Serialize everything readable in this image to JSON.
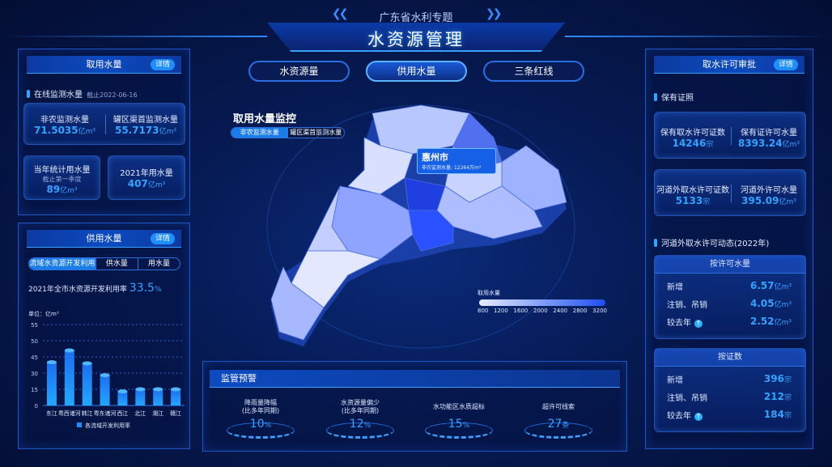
{
  "header": {
    "subtitle": "广东省水利专题",
    "title": "水资源管理"
  },
  "nav_tabs": [
    {
      "label": "水资源量",
      "active": false
    },
    {
      "label": "供用水量",
      "active": true
    },
    {
      "label": "三条红线",
      "active": false
    }
  ],
  "left_top": {
    "title": "取用水量",
    "detail": "详情",
    "section": "在线监测水量",
    "as_of": "截止2022-06-16",
    "items": [
      {
        "label": "非农监测水量",
        "value": "71.5035",
        "unit": "亿m³"
      },
      {
        "label": "罐区渠首监测水量",
        "value": "55.7173",
        "unit": "亿m³"
      }
    ],
    "annual": {
      "label": "当年统计用水量",
      "note": "截止第一季度",
      "value": "89",
      "unit": "亿m³"
    },
    "y2021": {
      "label": "2021年用水量",
      "value": "407",
      "unit": "亿m³"
    }
  },
  "left_bottom": {
    "title": "供用水量",
    "detail": "详情",
    "tabs": [
      "流域水资源开发利用",
      "供水量",
      "用水量"
    ],
    "active_tab": 0,
    "rate_label": "2021年全市水资源开发利用率",
    "rate_value": "33.5",
    "rate_unit": "%"
  },
  "chart_data": {
    "type": "bar",
    "ylabel": "单位：亿m³",
    "yticks": [
      0,
      15,
      30,
      45,
      50,
      55
    ],
    "categories": [
      "东江",
      "粤西诸河",
      "韩江",
      "粤东诸河",
      "西江",
      "北江",
      "湘江",
      "赣江"
    ],
    "series": [
      {
        "name": "各流域开发利用率",
        "values": [
          40,
          47,
          39,
          28,
          13,
          15,
          15,
          15
        ]
      }
    ],
    "legend": "bottom",
    "grid": true,
    "color": "#1e8fff"
  },
  "map": {
    "title": "取用水量监控",
    "toggle": [
      "非农监测水量",
      "罐区渠首监测水量"
    ],
    "active_toggle": 0,
    "tooltip": {
      "city": "惠州市",
      "label": "非农监测水量:",
      "value": "12264",
      "unit": "万m³"
    },
    "legend": {
      "title": "取用水量",
      "ticks": [
        "800",
        "1200",
        "1600",
        "2000",
        "2400",
        "2800",
        "3200"
      ],
      "color_low": "#e6ecff",
      "color_high": "#1e4ff0"
    }
  },
  "warning": {
    "title": "监管预警",
    "items": [
      {
        "label": "降雨量降幅",
        "sub": "(比多年同期)",
        "value": "10",
        "unit": "%"
      },
      {
        "label": "水资源量偏少",
        "sub": "(比多年同期)",
        "value": "12",
        "unit": "%"
      },
      {
        "label": "水功能区水质超标",
        "sub": "",
        "value": "15",
        "unit": "%"
      },
      {
        "label": "超许可线索",
        "sub": "",
        "value": "27",
        "unit": "条"
      }
    ]
  },
  "right": {
    "title": "取水许可审批",
    "detail": "详情",
    "section1": "保有证照",
    "cards": [
      {
        "label": "保有取水许可证数",
        "value": "14246",
        "unit": "宗"
      },
      {
        "label": "保有证许可水量",
        "value": "8393.24",
        "unit": "亿m³"
      },
      {
        "label": "河道外取水许可证数",
        "value": "5133",
        "unit": "宗"
      },
      {
        "label": "河道外许可水量",
        "value": "395.09",
        "unit": "亿m³"
      }
    ],
    "section2": "河道外取水许可动态(2022年)",
    "by_volume": {
      "title": "按许可水量",
      "rows": [
        {
          "label": "新增",
          "value": "6.57",
          "unit": "亿m³"
        },
        {
          "label": "注销、吊销",
          "value": "4.05",
          "unit": "亿m³"
        },
        {
          "label": "较去年",
          "value": "2.52",
          "unit": "亿m³",
          "trend": "up"
        }
      ]
    },
    "by_count": {
      "title": "按证数",
      "rows": [
        {
          "label": "新增",
          "value": "396",
          "unit": "宗"
        },
        {
          "label": "注销、吊销",
          "value": "212",
          "unit": "宗"
        },
        {
          "label": "较去年",
          "value": "184",
          "unit": "宗",
          "trend": "up"
        }
      ]
    }
  }
}
